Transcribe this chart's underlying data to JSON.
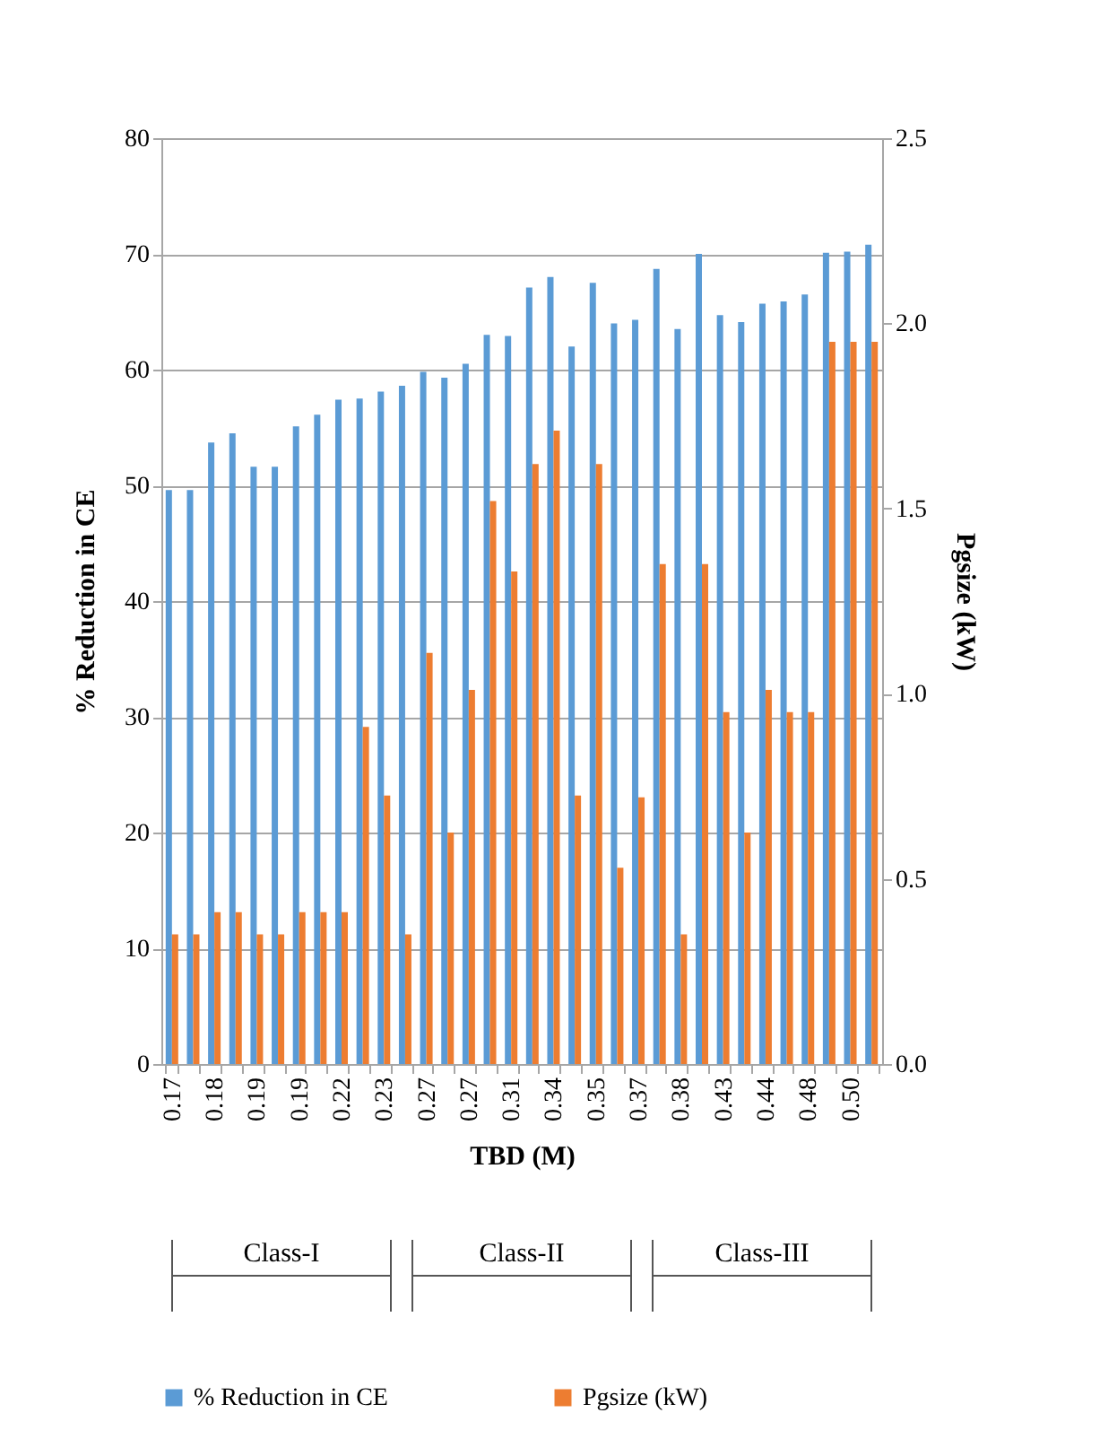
{
  "chart_data": {
    "type": "bar",
    "xlabel": "TBD (M)",
    "ylabel": "% Reduction in CE",
    "y2label": "Pgsize (kW)",
    "categories": [
      "0.17",
      null,
      "0.18",
      null,
      "0.19",
      null,
      "0.19",
      null,
      "0.22",
      null,
      "0.23",
      null,
      "0.27",
      null,
      "0.27",
      null,
      "0.31",
      null,
      "0.34",
      null,
      "0.35",
      null,
      "0.37",
      null,
      "0.38",
      null,
      "0.43",
      null,
      "0.44",
      null,
      "0.48",
      null,
      "0.50",
      null
    ],
    "series": [
      {
        "name": "% Reduction in CE",
        "color": "#5b9bd5",
        "values": [
          49.6,
          49.6,
          53.7,
          54.5,
          51.6,
          51.6,
          55.1,
          56.1,
          57.4,
          57.5,
          58.1,
          58.6,
          59.8,
          59.3,
          60.5,
          63.0,
          62.9,
          67.1,
          68.0,
          62.0,
          67.5,
          64.0,
          64.3,
          68.7,
          63.5,
          70.0,
          64.7,
          64.1,
          65.7,
          65.9,
          66.5,
          70.1,
          70.2,
          70.8
        ]
      },
      {
        "name": "Pgsize (kW)",
        "color": "#ed7d31",
        "axis": "y2",
        "values": [
          0.35,
          0.35,
          0.41,
          0.41,
          0.35,
          0.35,
          0.41,
          0.41,
          0.41,
          0.91,
          0.725,
          0.35,
          1.11,
          0.625,
          1.01,
          1.52,
          1.33,
          1.62,
          1.71,
          0.725,
          1.62,
          0.53,
          0.72,
          1.35,
          0.35,
          1.35,
          0.95,
          0.625,
          1.01,
          0.95,
          0.95,
          1.95,
          1.95,
          1.95
        ]
      }
    ],
    "ylim": [
      0,
      80
    ],
    "yticks": [
      0,
      10,
      20,
      30,
      40,
      50,
      60,
      70,
      80
    ],
    "y2lim": [
      0,
      2.5
    ],
    "y2ticks": [
      {
        "value": 0,
        "label": "0.0"
      },
      {
        "value": 0.5,
        "label": "0.5"
      },
      {
        "value": 1,
        "label": "1.0"
      },
      {
        "value": 1.5,
        "label": "1.5"
      },
      {
        "value": 2,
        "label": "2.0"
      },
      {
        "value": 2.5,
        "label": "2.5"
      }
    ],
    "grid": "y",
    "legend": "bottom",
    "annotations": [
      "Class-I",
      "Class-II",
      "Class-III"
    ]
  }
}
